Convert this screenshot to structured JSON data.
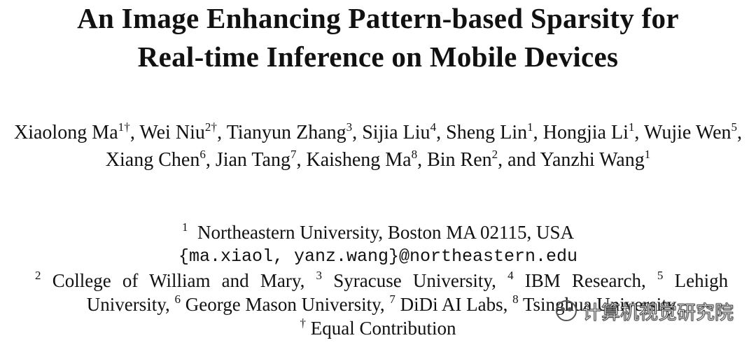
{
  "title": [
    "An Image Enhancing Pattern-based Sparsity for",
    "Real-time Inference on Mobile Devices"
  ],
  "authors": {
    "separator": ", ",
    "conjunction": "and",
    "list": [
      {
        "name": "Xiaolong Ma",
        "sup": "1†"
      },
      {
        "name": "Wei Niu",
        "sup": "2†"
      },
      {
        "name": "Tianyun Zhang",
        "sup": "3"
      },
      {
        "name": "Sijia Liu",
        "sup": "4"
      },
      {
        "name": "Sheng Lin",
        "sup": "1"
      },
      {
        "name": "Hongjia Li",
        "sup": "1"
      },
      {
        "name": "Wujie Wen",
        "sup": "5"
      },
      {
        "name": "Xiang Chen",
        "sup": "6"
      },
      {
        "name": "Jian Tang",
        "sup": "7"
      },
      {
        "name": "Kaisheng Ma",
        "sup": "8"
      },
      {
        "name": "Bin Ren",
        "sup": "2"
      },
      {
        "name": "Yanzhi Wang",
        "sup": "1"
      }
    ]
  },
  "primary_affiliation": {
    "sup": "1",
    "text": "Northeastern University, Boston MA 02115, USA",
    "email": "{ma.xiaol, yanz.wang}@northeastern.edu"
  },
  "affiliations": {
    "separator": ", ",
    "list": [
      {
        "sup": "2",
        "text": "College of William and Mary"
      },
      {
        "sup": "3",
        "text": "Syracuse University"
      },
      {
        "sup": "4",
        "text": "IBM Research"
      },
      {
        "sup": "5",
        "text": "Lehigh University"
      },
      {
        "sup": "6",
        "text": "George Mason University"
      },
      {
        "sup": "7",
        "text": "DiDi AI Labs"
      },
      {
        "sup": "8",
        "text": "Tsinghua University"
      }
    ]
  },
  "note": {
    "sup": "†",
    "text": "Equal Contribution"
  },
  "watermark": "计算机视觉研究院"
}
